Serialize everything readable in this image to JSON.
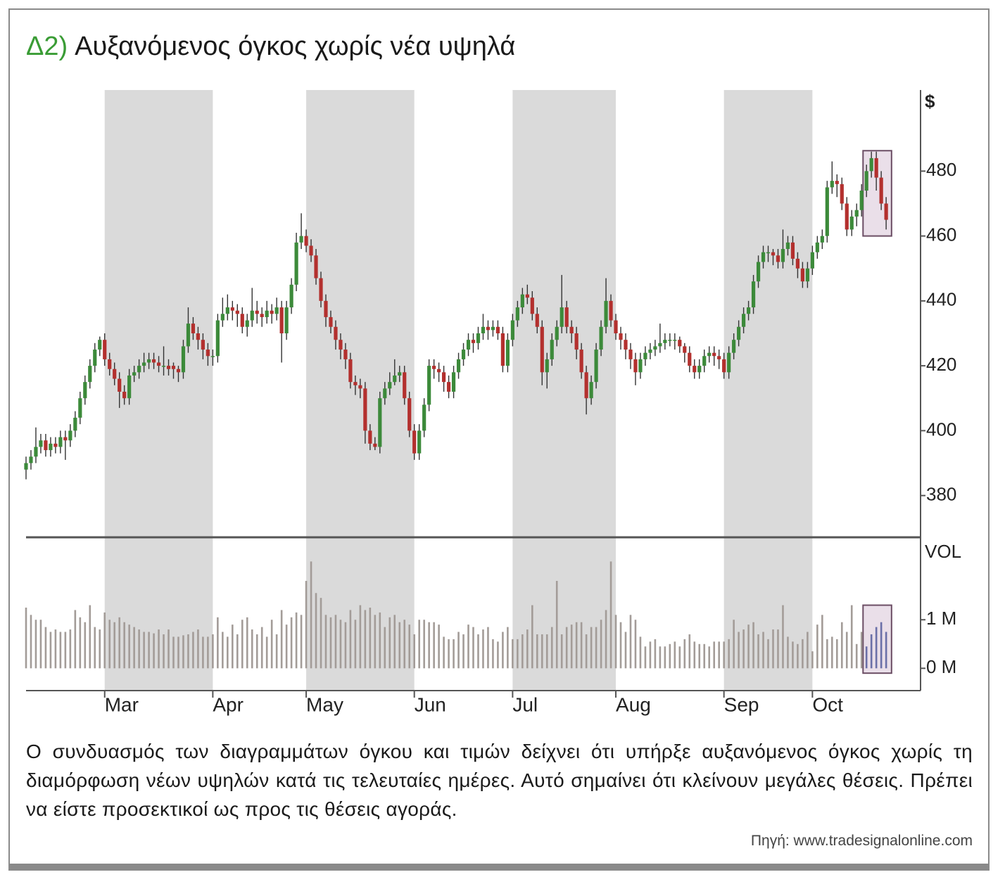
{
  "chart_data": {
    "type": "candlestick",
    "title_prefix": "Δ2)",
    "title": "Αυξανόμενος όγκος χωρίς νέα υψηλά",
    "ylabel": "$",
    "open": [
      388,
      390,
      392,
      395,
      397,
      394,
      396,
      395,
      398,
      397,
      400,
      404,
      410,
      415,
      420,
      425,
      428,
      422,
      419,
      416,
      412,
      410,
      417,
      418,
      420,
      421,
      422,
      421,
      420,
      420,
      420,
      419,
      418,
      426,
      433,
      430,
      428,
      425,
      423,
      423,
      434,
      436,
      438,
      437,
      436,
      432,
      434,
      437,
      436,
      435,
      437,
      436,
      438,
      430,
      438,
      445,
      458,
      460,
      457,
      454,
      447,
      440,
      435,
      432,
      428,
      425,
      422,
      415,
      414,
      413,
      400,
      396,
      395,
      410,
      413,
      415,
      417,
      418,
      410,
      400,
      393,
      400,
      408,
      420,
      419,
      418,
      415,
      412,
      418,
      422,
      425,
      428,
      427,
      430,
      432,
      431,
      432,
      430,
      420,
      428,
      434,
      438,
      442,
      441,
      436,
      432,
      418,
      422,
      428,
      432,
      438,
      432,
      430,
      425,
      418,
      410,
      415,
      425,
      432,
      440,
      434,
      430,
      428,
      425,
      422,
      418,
      422,
      424,
      425,
      426,
      427,
      428,
      428,
      428,
      426,
      424,
      420,
      418,
      420,
      423,
      424,
      423,
      422,
      418,
      424,
      428,
      432,
      436,
      438,
      446,
      452,
      455,
      455,
      454,
      452,
      456,
      458,
      453,
      450,
      446,
      450,
      455,
      458,
      460,
      475,
      477,
      476,
      470,
      462,
      466,
      468,
      474,
      480,
      484,
      478,
      470
    ],
    "high": [
      392,
      394,
      401,
      399,
      399,
      398,
      398,
      400,
      400,
      402,
      406,
      412,
      417,
      422,
      427,
      429,
      430,
      424,
      421,
      418,
      414,
      419,
      420,
      422,
      424,
      424,
      424,
      423,
      426,
      422,
      421,
      420,
      428,
      438,
      435,
      432,
      430,
      427,
      425,
      436,
      441,
      442,
      440,
      439,
      438,
      436,
      444,
      440,
      438,
      440,
      439,
      441,
      440,
      440,
      447,
      461,
      467,
      462,
      459,
      456,
      449,
      442,
      437,
      434,
      430,
      427,
      424,
      417,
      416,
      415,
      402,
      398,
      412,
      415,
      418,
      422,
      420,
      420,
      412,
      402,
      402,
      410,
      422,
      422,
      421,
      420,
      417,
      420,
      424,
      427,
      430,
      430,
      432,
      436,
      434,
      434,
      434,
      432,
      430,
      436,
      440,
      444,
      445,
      443,
      438,
      434,
      424,
      430,
      434,
      448,
      440,
      434,
      432,
      427,
      420,
      417,
      427,
      434,
      447,
      442,
      436,
      432,
      430,
      427,
      424,
      424,
      426,
      427,
      428,
      433,
      430,
      430,
      430,
      429,
      427,
      426,
      422,
      422,
      425,
      426,
      426,
      425,
      424,
      426,
      430,
      434,
      438,
      440,
      448,
      454,
      457,
      457,
      456,
      456,
      462,
      460,
      460,
      455,
      452,
      452,
      457,
      460,
      462,
      477,
      483,
      479,
      478,
      472,
      468,
      470,
      476,
      482,
      486,
      486,
      480,
      472
    ],
    "low": [
      385,
      388,
      390,
      393,
      392,
      392,
      393,
      393,
      391,
      395,
      398,
      402,
      408,
      413,
      418,
      423,
      420,
      417,
      414,
      407,
      408,
      408,
      415,
      416,
      418,
      419,
      419,
      418,
      417,
      417,
      416,
      415,
      416,
      424,
      428,
      425,
      422,
      420,
      420,
      421,
      432,
      434,
      434,
      432,
      430,
      429,
      432,
      433,
      432,
      433,
      433,
      434,
      421,
      428,
      436,
      443,
      456,
      455,
      452,
      445,
      438,
      432,
      430,
      425,
      422,
      419,
      413,
      411,
      410,
      396,
      394,
      394,
      393,
      408,
      411,
      414,
      415,
      408,
      398,
      391,
      391,
      398,
      406,
      416,
      415,
      412,
      410,
      410,
      416,
      420,
      423,
      424,
      425,
      428,
      428,
      429,
      428,
      418,
      418,
      426,
      432,
      436,
      439,
      434,
      430,
      414,
      413,
      420,
      426,
      430,
      430,
      427,
      422,
      416,
      405,
      408,
      413,
      423,
      430,
      432,
      428,
      425,
      422,
      419,
      414,
      416,
      420,
      422,
      423,
      424,
      425,
      426,
      425,
      424,
      421,
      418,
      416,
      416,
      418,
      421,
      420,
      419,
      416,
      416,
      422,
      426,
      430,
      434,
      436,
      444,
      450,
      452,
      451,
      450,
      450,
      454,
      451,
      447,
      444,
      444,
      448,
      453,
      456,
      458,
      473,
      472,
      468,
      460,
      460,
      463,
      466,
      472,
      478,
      474,
      468,
      462
    ],
    "close": [
      390,
      392,
      395,
      397,
      394,
      396,
      395,
      398,
      397,
      400,
      404,
      410,
      415,
      420,
      425,
      428,
      422,
      419,
      416,
      412,
      410,
      417,
      418,
      420,
      421,
      422,
      421,
      420,
      420,
      419,
      419,
      418,
      426,
      433,
      430,
      428,
      425,
      423,
      423,
      434,
      436,
      438,
      437,
      436,
      432,
      434,
      437,
      436,
      435,
      437,
      436,
      438,
      430,
      438,
      445,
      458,
      460,
      457,
      454,
      447,
      440,
      435,
      432,
      428,
      425,
      422,
      415,
      414,
      413,
      400,
      396,
      395,
      410,
      413,
      415,
      417,
      418,
      410,
      400,
      393,
      400,
      408,
      420,
      419,
      418,
      415,
      412,
      418,
      422,
      425,
      428,
      427,
      430,
      432,
      431,
      432,
      430,
      420,
      428,
      434,
      438,
      442,
      441,
      436,
      432,
      418,
      422,
      428,
      432,
      438,
      432,
      430,
      425,
      418,
      410,
      415,
      425,
      432,
      440,
      434,
      430,
      428,
      425,
      422,
      418,
      422,
      424,
      425,
      426,
      427,
      428,
      428,
      428,
      426,
      424,
      420,
      418,
      420,
      423,
      424,
      423,
      422,
      418,
      424,
      428,
      432,
      436,
      438,
      446,
      452,
      455,
      455,
      454,
      452,
      456,
      458,
      453,
      450,
      446,
      450,
      455,
      458,
      460,
      475,
      477,
      476,
      470,
      462,
      466,
      468,
      474,
      480,
      484,
      478,
      470,
      465
    ],
    "up_color": "#3c8a3a",
    "down_color": "#b3302e",
    "wick_color": "#333333",
    "xlim": [
      0,
      182
    ],
    "xticks": [
      {
        "value": 16,
        "label": "Mar"
      },
      {
        "value": 38,
        "label": "Apr"
      },
      {
        "value": 57,
        "label": "May"
      },
      {
        "value": 79,
        "label": "Jun"
      },
      {
        "value": 99,
        "label": "Jul"
      },
      {
        "value": 120,
        "label": "Aug"
      },
      {
        "value": 142,
        "label": "Sep"
      },
      {
        "value": 160,
        "label": "Oct"
      }
    ],
    "shade_alternate_months": true,
    "shade_color": "#dadada",
    "ylim": [
      368,
      505
    ],
    "yticks": [
      380,
      400,
      420,
      440,
      460,
      480
    ],
    "highlight": {
      "x": [
        170.3,
        176.1
      ],
      "y": [
        460,
        486.3
      ],
      "volume_y": [
        -0.1,
        1.3
      ],
      "color": "#6b70a8"
    },
    "volume": {
      "ylabel": "VOL",
      "color": "#a39c98",
      "ylim": [
        -0.43,
        2.64
      ],
      "yticks": [
        {
          "value": 0,
          "label": "0 M"
        },
        {
          "value": 1,
          "label": "1 M"
        }
      ],
      "values": [
        1.25,
        1.1,
        1.0,
        1.0,
        0.85,
        0.75,
        0.8,
        0.75,
        0.75,
        0.8,
        1.2,
        1.05,
        0.95,
        1.3,
        0.85,
        0.8,
        1.15,
        1.0,
        0.95,
        1.05,
        0.95,
        0.9,
        0.85,
        0.8,
        0.75,
        0.75,
        0.72,
        0.8,
        0.7,
        0.8,
        0.65,
        0.65,
        0.68,
        0.7,
        0.75,
        0.8,
        0.65,
        0.65,
        0.7,
        1.05,
        0.75,
        0.65,
        0.9,
        0.7,
        1.0,
        1.05,
        0.8,
        0.7,
        0.85,
        0.65,
        1.0,
        0.7,
        1.2,
        0.9,
        1.05,
        1.15,
        1.1,
        1.8,
        2.2,
        1.55,
        1.45,
        1.1,
        1.05,
        1.1,
        1.0,
        0.95,
        1.2,
        1.0,
        1.3,
        1.2,
        1.25,
        1.1,
        1.15,
        0.85,
        1.05,
        1.1,
        0.95,
        1.0,
        0.9,
        0.7,
        1.0,
        1.0,
        0.95,
        0.95,
        0.9,
        0.65,
        0.6,
        0.6,
        0.75,
        0.7,
        0.9,
        0.85,
        0.7,
        0.8,
        0.85,
        0.6,
        0.55,
        0.75,
        0.85,
        0.6,
        0.6,
        0.7,
        0.8,
        1.3,
        0.7,
        0.7,
        0.7,
        0.85,
        1.8,
        0.7,
        0.85,
        0.9,
        0.95,
        0.95,
        0.7,
        0.85,
        0.85,
        1.0,
        1.2,
        2.2,
        1.1,
        0.95,
        0.75,
        1.1,
        1.0,
        0.65,
        0.45,
        0.55,
        0.6,
        0.45,
        0.45,
        0.5,
        0.55,
        0.45,
        0.6,
        0.7,
        0.55,
        0.5,
        0.5,
        0.45,
        0.55,
        0.55,
        0.55,
        0.6,
        1.0,
        0.75,
        0.8,
        0.9,
        0.95,
        0.7,
        0.75,
        0.6,
        0.8,
        0.8,
        1.3,
        0.65,
        0.55,
        0.5,
        0.6,
        0.75,
        0.35,
        0.9,
        1.1,
        0.6,
        0.65,
        0.6,
        0.95,
        0.75,
        1.3,
        0.5,
        0.75,
        0.45,
        0.7,
        0.85,
        0.95,
        0.75
      ]
    }
  },
  "caption": "Ο συνδυασμός των διαγραμμάτων όγκου και τιμών δείχνει ότι υπήρξε αυξανόμενος όγκος χωρίς τη διαμόρφωση νέων υψηλών κατά τις τελευταίες ημέρες. Αυτό σημαίνει ότι κλείνουν μεγάλες θέσεις. Πρέπει να είστε προσεκτικοί ως προς τις θέσεις αγοράς.",
  "source": "Πηγή: www.tradesignalonline.com"
}
